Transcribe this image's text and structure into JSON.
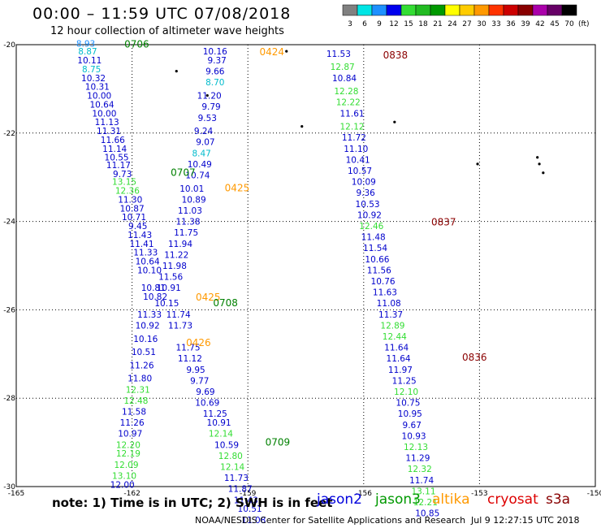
{
  "header": {
    "title": "00:00 – 11:59 UTC 07/08/2018",
    "subtitle": "12 hour collection of altimeter wave heights"
  },
  "legend": {
    "unit": "(ft)",
    "bins": [
      {
        "label": "3",
        "color": "#808080"
      },
      {
        "label": "6",
        "color": "#00e5e5"
      },
      {
        "label": "9",
        "color": "#1e90ff"
      },
      {
        "label": "12",
        "color": "#0000ee"
      },
      {
        "label": "15",
        "color": "#33dd33"
      },
      {
        "label": "18",
        "color": "#22bb22"
      },
      {
        "label": "21",
        "color": "#009900"
      },
      {
        "label": "24",
        "color": "#ffff00"
      },
      {
        "label": "27",
        "color": "#ffcc00"
      },
      {
        "label": "30",
        "color": "#ff9900"
      },
      {
        "label": "33",
        "color": "#ff3300"
      },
      {
        "label": "36",
        "color": "#cc0000"
      },
      {
        "label": "39",
        "color": "#880000"
      },
      {
        "label": "42",
        "color": "#aa00aa"
      },
      {
        "label": "45",
        "color": "#660066"
      },
      {
        "label": "70",
        "color": "#000000"
      }
    ]
  },
  "map": {
    "lon_ticks": [
      "-165",
      "-162",
      "-159",
      "-156",
      "-153",
      "-150"
    ],
    "lat_ticks": [
      "-20",
      "-22",
      "-24",
      "-26",
      "-28",
      "-30"
    ]
  },
  "passes": [
    {
      "label": "0706",
      "color": "#008000",
      "lon": -162.2,
      "lat": -19.97
    },
    {
      "label": "0424",
      "color": "#ff9900",
      "lon": -158.7,
      "lat": -20.15
    },
    {
      "label": "0838",
      "color": "#8b0000",
      "lon": -155.5,
      "lat": -20.22
    },
    {
      "label": "0707",
      "color": "#008000",
      "lon": -161.0,
      "lat": -22.88
    },
    {
      "label": "0425",
      "color": "#ff9900",
      "lon": -159.6,
      "lat": -23.23
    },
    {
      "label": "0837",
      "color": "#8b0000",
      "lon": -154.25,
      "lat": -24.0
    },
    {
      "label": "0425",
      "color": "#ff9900",
      "lon": -160.35,
      "lat": -25.7
    },
    {
      "label": "0708",
      "color": "#008000",
      "lon": -159.9,
      "lat": -25.83
    },
    {
      "label": "0426",
      "color": "#ff9900",
      "lon": -160.6,
      "lat": -26.73
    },
    {
      "label": "0836",
      "color": "#8b0000",
      "lon": -153.45,
      "lat": -27.06
    },
    {
      "label": "0709",
      "color": "#008000",
      "lon": -158.55,
      "lat": -28.98
    }
  ],
  "tracks": [
    {
      "name": "jason2-west",
      "color": "#0000cc",
      "points": [
        {
          "v": "8.93",
          "lon": -163.2,
          "lat": -19.97,
          "c": "#1e90ff"
        },
        {
          "v": "8.87",
          "lon": -163.15,
          "lat": -20.15,
          "c": "#00bbcc"
        },
        {
          "v": "10.11",
          "lon": -163.1,
          "lat": -20.35
        },
        {
          "v": "8.75",
          "lon": -163.05,
          "lat": -20.55,
          "c": "#00bbcc"
        },
        {
          "v": "10.32",
          "lon": -163.0,
          "lat": -20.75
        },
        {
          "v": "10.31",
          "lon": -162.9,
          "lat": -20.95
        },
        {
          "v": "10.00",
          "lon": -162.85,
          "lat": -21.15
        },
        {
          "v": "10.64",
          "lon": -162.78,
          "lat": -21.35
        },
        {
          "v": "10.00",
          "lon": -162.72,
          "lat": -21.55
        },
        {
          "v": "11.13",
          "lon": -162.65,
          "lat": -21.75
        },
        {
          "v": "11.31",
          "lon": -162.6,
          "lat": -21.95
        },
        {
          "v": "11.66",
          "lon": -162.5,
          "lat": -22.15
        },
        {
          "v": "11.14",
          "lon": -162.45,
          "lat": -22.35
        },
        {
          "v": "10.55",
          "lon": -162.4,
          "lat": -22.55
        },
        {
          "v": "11.17",
          "lon": -162.35,
          "lat": -22.72
        },
        {
          "v": "9.73",
          "lon": -162.25,
          "lat": -22.92
        },
        {
          "v": "13.15",
          "lon": -162.2,
          "lat": -23.1,
          "c": "#33dd33"
        },
        {
          "v": "12.36",
          "lon": -162.12,
          "lat": -23.3,
          "c": "#33dd33"
        },
        {
          "v": "11.30",
          "lon": -162.05,
          "lat": -23.5
        },
        {
          "v": "10.87",
          "lon": -162.0,
          "lat": -23.7
        },
        {
          "v": "10.71",
          "lon": -161.95,
          "lat": -23.9
        },
        {
          "v": "9.45",
          "lon": -161.85,
          "lat": -24.1
        },
        {
          "v": "11.43",
          "lon": -161.8,
          "lat": -24.3
        },
        {
          "v": "11.41",
          "lon": -161.75,
          "lat": -24.5
        },
        {
          "v": "11.33",
          "lon": -161.65,
          "lat": -24.7
        },
        {
          "v": "10.64",
          "lon": -161.6,
          "lat": -24.9
        },
        {
          "v": "10.10",
          "lon": -161.55,
          "lat": -25.1
        },
        {
          "v": "10.81",
          "lon": -161.45,
          "lat": -25.5
        },
        {
          "v": "10.82",
          "lon": -161.4,
          "lat": -25.7
        }
      ]
    },
    {
      "name": "jason2-south",
      "color": "#0000cc",
      "points": [
        {
          "v": "11.33",
          "lon": -161.55,
          "lat": -26.1
        },
        {
          "v": "10.92",
          "lon": -161.6,
          "lat": -26.35
        },
        {
          "v": "10.16",
          "lon": -161.65,
          "lat": -26.65
        },
        {
          "v": "10.51",
          "lon": -161.7,
          "lat": -26.95
        },
        {
          "v": "11.26",
          "lon": -161.75,
          "lat": -27.25
        },
        {
          "v": "11.80",
          "lon": -161.8,
          "lat": -27.55
        },
        {
          "v": "12.31",
          "lon": -161.85,
          "lat": -27.8,
          "c": "#33dd33"
        },
        {
          "v": "12.48",
          "lon": -161.9,
          "lat": -28.05,
          "c": "#33dd33"
        },
        {
          "v": "11.58",
          "lon": -161.95,
          "lat": -28.3
        },
        {
          "v": "11.26",
          "lon": -162.0,
          "lat": -28.55
        },
        {
          "v": "10.97",
          "lon": -162.05,
          "lat": -28.8
        },
        {
          "v": "12.20",
          "lon": -162.1,
          "lat": -29.05,
          "c": "#33dd33"
        },
        {
          "v": "12.19",
          "lon": -162.1,
          "lat": -29.25,
          "c": "#33dd33"
        },
        {
          "v": "12.09",
          "lon": -162.15,
          "lat": -29.5,
          "c": "#33dd33"
        },
        {
          "v": "13.10",
          "lon": -162.2,
          "lat": -29.75,
          "c": "#33dd33"
        },
        {
          "v": "12.00",
          "lon": -162.25,
          "lat": -29.95
        }
      ]
    },
    {
      "name": "jason3-mid",
      "color": "#0000cc",
      "points": [
        {
          "v": "10.16",
          "lon": -159.85,
          "lat": -20.15
        },
        {
          "v": "9.37",
          "lon": -159.8,
          "lat": -20.35
        },
        {
          "v": "9.66",
          "lon": -159.85,
          "lat": -20.6
        },
        {
          "v": "8.70",
          "lon": -159.85,
          "lat": -20.85,
          "c": "#00bbcc"
        },
        {
          "v": "11.20",
          "lon": -160.0,
          "lat": -21.15
        },
        {
          "v": "9.79",
          "lon": -159.95,
          "lat": -21.4
        },
        {
          "v": "9.53",
          "lon": -160.05,
          "lat": -21.65
        },
        {
          "v": "9.24",
          "lon": -160.15,
          "lat": -21.95
        },
        {
          "v": "9.07",
          "lon": -160.1,
          "lat": -22.2
        },
        {
          "v": "8.47",
          "lon": -160.2,
          "lat": -22.45,
          "c": "#00bbcc"
        },
        {
          "v": "10.49",
          "lon": -160.25,
          "lat": -22.7
        },
        {
          "v": "10.74",
          "lon": -160.3,
          "lat": -22.95
        },
        {
          "v": "10.01",
          "lon": -160.45,
          "lat": -23.25
        },
        {
          "v": "10.89",
          "lon": -160.4,
          "lat": -23.5
        },
        {
          "v": "11.03",
          "lon": -160.5,
          "lat": -23.75
        },
        {
          "v": "11.38",
          "lon": -160.55,
          "lat": -24.0
        },
        {
          "v": "11.75",
          "lon": -160.6,
          "lat": -24.25
        },
        {
          "v": "11.94",
          "lon": -160.75,
          "lat": -24.5
        },
        {
          "v": "11.22",
          "lon": -160.85,
          "lat": -24.75
        },
        {
          "v": "11.98",
          "lon": -160.9,
          "lat": -25.0
        },
        {
          "v": "11.56",
          "lon": -161.0,
          "lat": -25.25
        },
        {
          "v": "10.91",
          "lon": -161.05,
          "lat": -25.5
        },
        {
          "v": "10.15",
          "lon": -161.1,
          "lat": -25.85
        }
      ]
    },
    {
      "name": "jason3-south",
      "color": "#0000cc",
      "points": [
        {
          "v": "11.74",
          "lon": -160.8,
          "lat": -26.1
        },
        {
          "v": "11.73",
          "lon": -160.75,
          "lat": -26.35
        },
        {
          "v": "11.75",
          "lon": -160.55,
          "lat": -26.85
        },
        {
          "v": "11.12",
          "lon": -160.5,
          "lat": -27.1
        },
        {
          "v": "9.95",
          "lon": -160.35,
          "lat": -27.35
        },
        {
          "v": "9.77",
          "lon": -160.25,
          "lat": -27.6
        },
        {
          "v": "9.69",
          "lon": -160.1,
          "lat": -27.85
        },
        {
          "v": "10.69",
          "lon": -160.05,
          "lat": -28.1
        },
        {
          "v": "11.25",
          "lon": -159.85,
          "lat": -28.35
        },
        {
          "v": "10.91",
          "lon": -159.75,
          "lat": -28.55
        },
        {
          "v": "12.14",
          "lon": -159.7,
          "lat": -28.8,
          "c": "#33dd33"
        },
        {
          "v": "10.59",
          "lon": -159.55,
          "lat": -29.05
        },
        {
          "v": "12.80",
          "lon": -159.45,
          "lat": -29.3,
          "c": "#33dd33"
        },
        {
          "v": "12.14",
          "lon": -159.4,
          "lat": -29.55,
          "c": "#33dd33"
        },
        {
          "v": "11.73",
          "lon": -159.3,
          "lat": -29.8
        },
        {
          "v": "11.87",
          "lon": -159.2,
          "lat": -30.05
        },
        {
          "v": "11.43",
          "lon": -159.05,
          "lat": -30.3
        },
        {
          "v": "10.51",
          "lon": -158.95,
          "lat": -30.5
        },
        {
          "v": "11.08",
          "lon": -158.85,
          "lat": -30.75
        }
      ]
    },
    {
      "name": "cryosat-east",
      "color": "#0000cc",
      "points": [
        {
          "v": "11.53",
          "lon": -156.65,
          "lat": -20.2
        },
        {
          "v": "12.87",
          "lon": -156.55,
          "lat": -20.5,
          "c": "#33dd33"
        },
        {
          "v": "10.84",
          "lon": -156.5,
          "lat": -20.75
        },
        {
          "v": "12.28",
          "lon": -156.45,
          "lat": -21.05,
          "c": "#33dd33"
        },
        {
          "v": "12.22",
          "lon": -156.4,
          "lat": -21.3,
          "c": "#33dd33"
        },
        {
          "v": "11.61",
          "lon": -156.3,
          "lat": -21.55
        },
        {
          "v": "12.12",
          "lon": -156.3,
          "lat": -21.85,
          "c": "#33dd33"
        },
        {
          "v": "11.72",
          "lon": -156.25,
          "lat": -22.1
        },
        {
          "v": "11.10",
          "lon": -156.2,
          "lat": -22.35
        },
        {
          "v": "10.41",
          "lon": -156.15,
          "lat": -22.6
        },
        {
          "v": "10.57",
          "lon": -156.1,
          "lat": -22.85
        },
        {
          "v": "10.09",
          "lon": -156.0,
          "lat": -23.1
        },
        {
          "v": "9.36",
          "lon": -155.95,
          "lat": -23.35
        },
        {
          "v": "10.53",
          "lon": -155.9,
          "lat": -23.6
        },
        {
          "v": "10.92",
          "lon": -155.85,
          "lat": -23.85
        },
        {
          "v": "12.46",
          "lon": -155.8,
          "lat": -24.1,
          "c": "#33dd33"
        },
        {
          "v": "11.48",
          "lon": -155.75,
          "lat": -24.35
        },
        {
          "v": "11.54",
          "lon": -155.7,
          "lat": -24.6
        },
        {
          "v": "10.66",
          "lon": -155.65,
          "lat": -24.85
        },
        {
          "v": "11.56",
          "lon": -155.6,
          "lat": -25.1
        },
        {
          "v": "10.76",
          "lon": -155.5,
          "lat": -25.35
        },
        {
          "v": "11.63",
          "lon": -155.45,
          "lat": -25.6
        },
        {
          "v": "11.08",
          "lon": -155.35,
          "lat": -25.85
        },
        {
          "v": "11.37",
          "lon": -155.3,
          "lat": -26.1
        },
        {
          "v": "12.89",
          "lon": -155.25,
          "lat": -26.35,
          "c": "#33dd33"
        },
        {
          "v": "12.44",
          "lon": -155.2,
          "lat": -26.6,
          "c": "#33dd33"
        },
        {
          "v": "11.64",
          "lon": -155.15,
          "lat": -26.85
        },
        {
          "v": "11.64",
          "lon": -155.1,
          "lat": -27.1
        },
        {
          "v": "11.97",
          "lon": -155.05,
          "lat": -27.35
        },
        {
          "v": "11.25",
          "lon": -154.95,
          "lat": -27.6
        },
        {
          "v": "12.10",
          "lon": -154.9,
          "lat": -27.85,
          "c": "#33dd33"
        },
        {
          "v": "10.75",
          "lon": -154.85,
          "lat": -28.1
        },
        {
          "v": "10.95",
          "lon": -154.8,
          "lat": -28.35
        },
        {
          "v": "9.67",
          "lon": -154.75,
          "lat": -28.6
        },
        {
          "v": "10.93",
          "lon": -154.7,
          "lat": -28.85
        },
        {
          "v": "12.13",
          "lon": -154.65,
          "lat": -29.1,
          "c": "#33dd33"
        },
        {
          "v": "11.29",
          "lon": -154.6,
          "lat": -29.35
        },
        {
          "v": "12.32",
          "lon": -154.55,
          "lat": -29.6,
          "c": "#33dd33"
        },
        {
          "v": "11.74",
          "lon": -154.5,
          "lat": -29.85
        },
        {
          "v": "13.11",
          "lon": -154.45,
          "lat": -30.1,
          "c": "#33dd33"
        },
        {
          "v": "12.21",
          "lon": -154.4,
          "lat": -30.35,
          "c": "#33dd33"
        },
        {
          "v": "10.85",
          "lon": -154.35,
          "lat": -30.6
        }
      ]
    }
  ],
  "islands": [
    {
      "lon": -160.85,
      "lat": -20.6
    },
    {
      "lon": -160.05,
      "lat": -21.15
    },
    {
      "lon": -158.0,
      "lat": -20.15
    },
    {
      "lon": -157.6,
      "lat": -21.85
    },
    {
      "lon": -155.2,
      "lat": -21.75
    },
    {
      "lon": -153.05,
      "lat": -22.7
    },
    {
      "lon": -151.5,
      "lat": -22.55
    },
    {
      "lon": -151.45,
      "lat": -22.7
    },
    {
      "lon": -151.35,
      "lat": -22.9
    }
  ],
  "footer": {
    "note": "note: 1) Time is in UTC; 2) SWH is in feet",
    "satellites": [
      {
        "name": "jason2",
        "color": "#0000dd"
      },
      {
        "name": "jason3",
        "color": "#009900"
      },
      {
        "name": "altika",
        "color": "#ff9900"
      },
      {
        "name": "cryosat",
        "color": "#dd0000"
      },
      {
        "name": "s3a",
        "color": "#880000"
      }
    ],
    "credit": "NOAA/NESDIS Center for Satellite Applications and Research",
    "timestamp": "Jul  9 12:27:15 UTC 2018"
  }
}
